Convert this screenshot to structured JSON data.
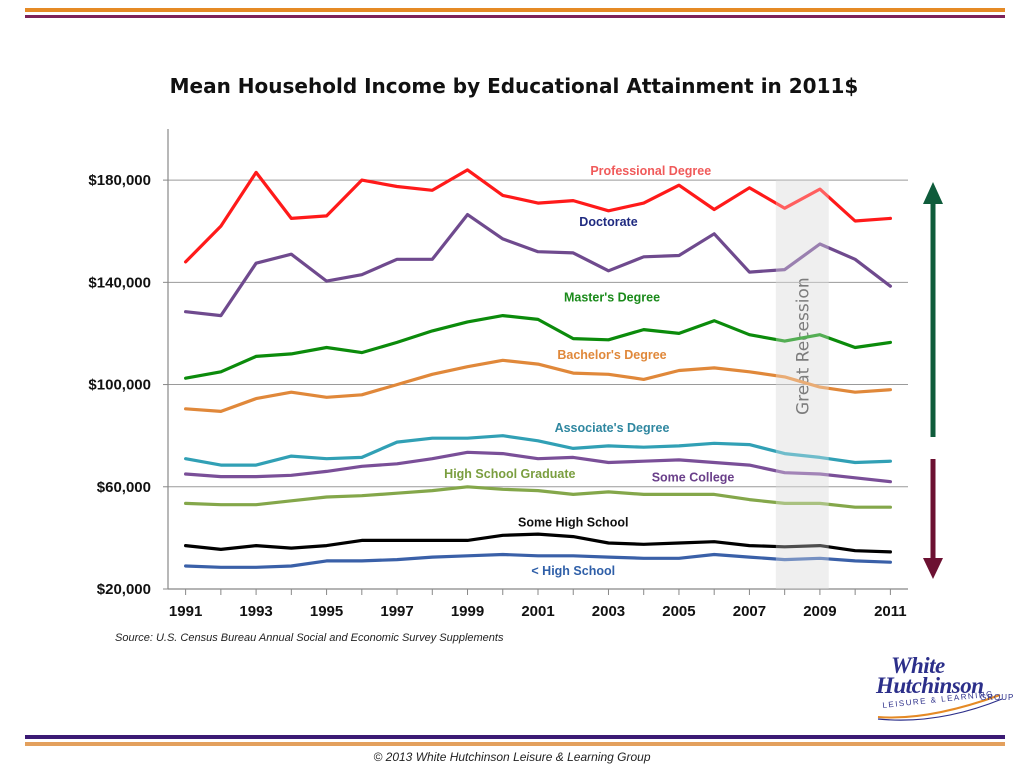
{
  "colors": {
    "top_bar_orange": "#e58a25",
    "top_bar_purple": "#7d2259",
    "bottom_bar_purple": "#3b1a74",
    "bottom_bar_orange": "#e3a05d",
    "arrow_up": "#0f5c3b",
    "arrow_down": "#6c1132",
    "recession_shade": "#e9e9e9",
    "logo_blue": "#2c2f8a",
    "logo_orange": "#e58a25"
  },
  "chart_data": {
    "type": "line",
    "title": "Mean Household Income by Educational Attainment in 2011$",
    "x": [
      1991,
      1992,
      1993,
      1994,
      1995,
      1996,
      1997,
      1998,
      1999,
      2000,
      2001,
      2002,
      2003,
      2004,
      2005,
      2006,
      2007,
      2008,
      2009,
      2010,
      2011
    ],
    "x_tick_labels": [
      "1991",
      "1993",
      "1995",
      "1997",
      "1999",
      "2001",
      "2003",
      "2005",
      "2007",
      "2009",
      "2011"
    ],
    "y_tick_labels": [
      "$20,000",
      "$60,000",
      "$100,000",
      "$140,000",
      "$180,000"
    ],
    "ylim": [
      20000,
      200000
    ],
    "xlim": [
      1990.5,
      2011.5
    ],
    "grid": "horizontal",
    "xlabel": "",
    "ylabel": "",
    "recession": {
      "label": "Great Recession",
      "start": 2007.75,
      "end": 2009.25
    },
    "series": [
      {
        "name": "Professional Degree",
        "color": "#ff1a1a",
        "label_color": "#f05a5a",
        "label_x": 2004.2,
        "label_y": 182000,
        "values": [
          148000,
          162000,
          183000,
          165000,
          166000,
          180000,
          177500,
          176000,
          184000,
          174000,
          171000,
          172000,
          168000,
          171000,
          178000,
          168500,
          177000,
          169000,
          176500,
          164000,
          165000
        ]
      },
      {
        "name": "Doctorate",
        "color": "#6f4a8e",
        "label_color": "#1f2a80",
        "label_x": 2003.0,
        "label_y": 162000,
        "values": [
          128500,
          127000,
          147500,
          151000,
          140500,
          143000,
          149000,
          149000,
          166500,
          157000,
          152000,
          151500,
          144500,
          150000,
          150500,
          159000,
          144000,
          145000,
          155000,
          149000,
          138500
        ]
      },
      {
        "name": "Master's Degree",
        "color": "#0b8b0b",
        "label_color": "#1a8a1a",
        "label_x": 2003.1,
        "label_y": 132500,
        "values": [
          102500,
          105000,
          111000,
          112000,
          114500,
          112500,
          116500,
          121000,
          124500,
          127000,
          125500,
          118000,
          117500,
          121500,
          120000,
          125000,
          119500,
          117000,
          119500,
          114500,
          116500
        ]
      },
      {
        "name": "Bachelor's Degree",
        "color": "#e0883a",
        "label_color": "#e0883a",
        "label_x": 2003.1,
        "label_y": 110000,
        "values": [
          90500,
          89500,
          94500,
          97000,
          95000,
          96000,
          100000,
          104000,
          107000,
          109500,
          108000,
          104500,
          104000,
          102000,
          105500,
          106500,
          105000,
          103000,
          99000,
          97000,
          98000
        ]
      },
      {
        "name": "Associate's Degree",
        "color": "#31a0b5",
        "label_color": "#2f87a0",
        "label_x": 2003.1,
        "label_y": 81500,
        "values": [
          71000,
          68500,
          68500,
          72000,
          71000,
          71500,
          77500,
          79000,
          79000,
          80000,
          78000,
          75000,
          76000,
          75500,
          76000,
          77000,
          76500,
          73000,
          71500,
          69500,
          70000
        ]
      },
      {
        "name": "High School Graduate",
        "color": "#84a74a",
        "label_color": "#7a9e3f",
        "label_x": 2000.2,
        "label_y": 63500,
        "values": [
          53500,
          53000,
          53000,
          54500,
          56000,
          56500,
          57500,
          58500,
          60000,
          59000,
          58500,
          57000,
          58000,
          57000,
          57000,
          57000,
          55000,
          53500,
          53500,
          52000,
          52000
        ]
      },
      {
        "name": "Some College",
        "color": "#7a4f98",
        "label_color": "#6a3f8a",
        "label_x": 2005.4,
        "label_y": 62000,
        "values": [
          65000,
          64000,
          64000,
          64500,
          66000,
          68000,
          69000,
          71000,
          73500,
          73000,
          71000,
          71500,
          69500,
          70000,
          70500,
          69500,
          68500,
          65500,
          65000,
          63500,
          62000
        ]
      },
      {
        "name": "Some High School",
        "color": "#000000",
        "label_color": "#111111",
        "label_x": 2002.0,
        "label_y": 44500,
        "values": [
          37000,
          35500,
          37000,
          36000,
          37000,
          39000,
          39000,
          39000,
          39000,
          41000,
          41500,
          40500,
          38000,
          37500,
          38000,
          38500,
          37000,
          36500,
          37000,
          35000,
          34500
        ]
      },
      {
        "name": "< High School",
        "color": "#3a60a8",
        "label_color": "#2f5fa8",
        "label_x": 2002.0,
        "label_y": 25500,
        "values": [
          29000,
          28500,
          28500,
          29000,
          31000,
          31000,
          31500,
          32500,
          33000,
          33500,
          33000,
          33000,
          32500,
          32000,
          32000,
          33500,
          32500,
          31500,
          32000,
          31000,
          30500
        ]
      }
    ]
  },
  "source_text": "Source: U.S. Census Bureau Annual Social and Economic Survey Supplements",
  "copyright": "© 2013 White Hutchinson Leisure & Learning Group",
  "logo": {
    "line1": "White",
    "line2": "Hutchinson",
    "tagline": "LEISURE & LEARNING",
    "group": "GROUP"
  }
}
